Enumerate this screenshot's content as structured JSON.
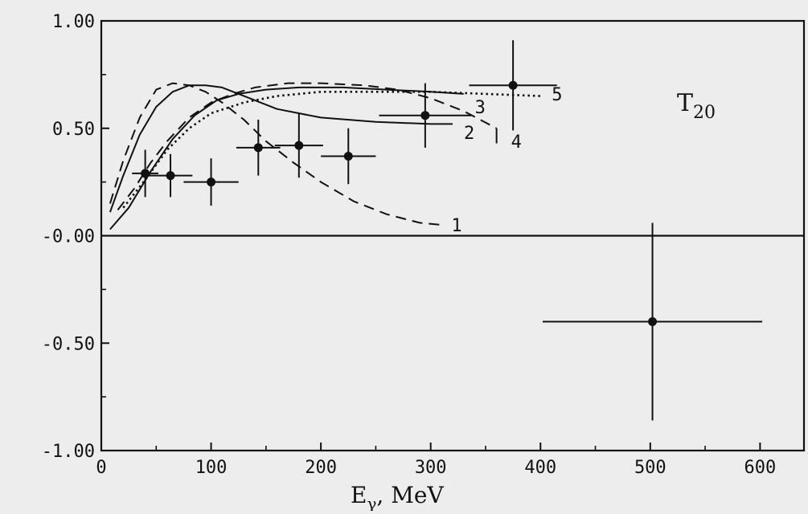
{
  "chart_data": {
    "type": "scatter",
    "title": "T",
    "title_subscript": "20",
    "xlabel": "E",
    "xlabel_subscript": "γ",
    "xlabel_unit": ",  MeV",
    "xlim": [
      0,
      640
    ],
    "ylim": [
      -1.0,
      1.0
    ],
    "xticks": [
      0,
      100,
      200,
      300,
      400,
      500,
      600
    ],
    "xtick_labels": [
      "0",
      "100",
      "200",
      "300",
      "400",
      "500",
      "600"
    ],
    "yticks": [
      1.0,
      0.5,
      0.0,
      -0.5,
      -1.0
    ],
    "ytick_labels": [
      "1.00",
      "0.50",
      "-0.00",
      "-0.50",
      "-1.00"
    ],
    "zero_line": true,
    "grid": false,
    "points": [
      {
        "x": 40,
        "y": 0.29,
        "xerr": 12,
        "yerr": 0.11
      },
      {
        "x": 63,
        "y": 0.28,
        "xerr": 20,
        "yerr": 0.1
      },
      {
        "x": 100,
        "y": 0.25,
        "xerr": 25,
        "yerr": 0.11
      },
      {
        "x": 143,
        "y": 0.41,
        "xerr": 20,
        "yerr": 0.13
      },
      {
        "x": 180,
        "y": 0.42,
        "xerr": 22,
        "yerr": 0.15
      },
      {
        "x": 225,
        "y": 0.37,
        "xerr": 25,
        "yerr": 0.13
      },
      {
        "x": 295,
        "y": 0.56,
        "xerr": 42,
        "yerr": 0.15
      },
      {
        "x": 375,
        "y": 0.7,
        "xerr": 40,
        "yerr": 0.21
      },
      {
        "x": 502,
        "y": -0.4,
        "xerr": 100,
        "yerr": 0.46
      }
    ],
    "series": [
      {
        "name": "1",
        "style": "dashed",
        "x": [
          8,
          20,
          35,
          50,
          65,
          80,
          95,
          110,
          130,
          150,
          175,
          200,
          230,
          260,
          290,
          310
        ],
        "y": [
          0.15,
          0.35,
          0.55,
          0.68,
          0.71,
          0.7,
          0.67,
          0.62,
          0.54,
          0.44,
          0.34,
          0.25,
          0.16,
          0.1,
          0.06,
          0.05
        ]
      },
      {
        "name": "2",
        "style": "solid",
        "x": [
          8,
          20,
          35,
          50,
          65,
          80,
          95,
          110,
          130,
          160,
          200,
          250,
          300,
          320
        ],
        "y": [
          0.11,
          0.28,
          0.47,
          0.6,
          0.67,
          0.7,
          0.7,
          0.69,
          0.65,
          0.59,
          0.55,
          0.53,
          0.52,
          0.52
        ]
      },
      {
        "name": "3",
        "style": "solid",
        "x": [
          8,
          25,
          45,
          65,
          85,
          105,
          125,
          150,
          180,
          220,
          260,
          300,
          330
        ],
        "y": [
          0.03,
          0.13,
          0.3,
          0.45,
          0.56,
          0.63,
          0.66,
          0.68,
          0.69,
          0.69,
          0.68,
          0.67,
          0.66
        ]
      },
      {
        "name": "4",
        "style": "dashed",
        "x": [
          15,
          30,
          45,
          60,
          80,
          100,
          120,
          140,
          170,
          200,
          240,
          270,
          300,
          330,
          360
        ],
        "y": [
          0.12,
          0.22,
          0.34,
          0.44,
          0.55,
          0.62,
          0.66,
          0.69,
          0.71,
          0.71,
          0.7,
          0.68,
          0.64,
          0.58,
          0.5
        ]
      },
      {
        "name": "5",
        "style": "dotted",
        "x": [
          20,
          40,
          60,
          80,
          100,
          130,
          160,
          200,
          250,
          300,
          350,
          400
        ],
        "y": [
          0.13,
          0.26,
          0.4,
          0.5,
          0.57,
          0.62,
          0.65,
          0.67,
          0.67,
          0.67,
          0.66,
          0.65
        ]
      }
    ]
  }
}
